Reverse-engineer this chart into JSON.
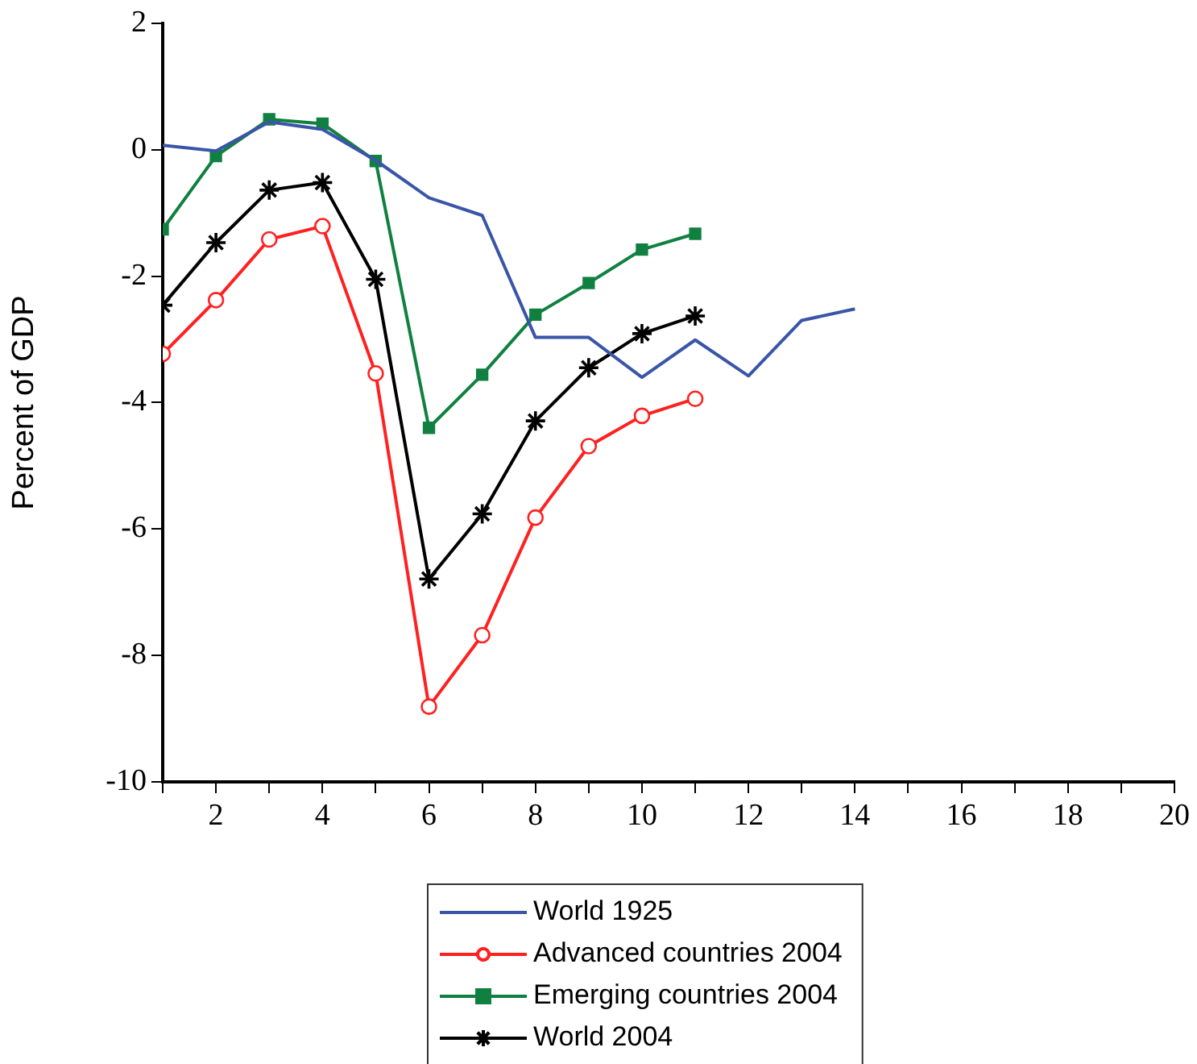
{
  "chart_data": {
    "type": "line",
    "ylabel": "Percent of GDP",
    "x": [
      1,
      2,
      3,
      4,
      5,
      6,
      7,
      8,
      9,
      10,
      11,
      12,
      13,
      14
    ],
    "series": [
      {
        "name": "World 1925",
        "color": "#3a55a8",
        "marker": "none",
        "values": [
          0.07,
          -0.02,
          0.44,
          0.32,
          -0.17,
          -0.76,
          -1.04,
          -2.97,
          -2.97,
          -3.6,
          -3.01,
          -3.58,
          -2.7,
          -2.52
        ]
      },
      {
        "name": "Advanced countries 2004",
        "color": "#ff2020",
        "marker": "circle",
        "values": [
          -3.23,
          -2.38,
          -1.42,
          -1.21,
          -3.54,
          -8.81,
          -7.68,
          -5.82,
          -4.69,
          -4.21,
          -3.94,
          null,
          null,
          null
        ]
      },
      {
        "name": "Emerging countries 2004",
        "color": "#108040",
        "marker": "square",
        "values": [
          -1.26,
          -0.1,
          0.48,
          0.41,
          -0.18,
          -4.4,
          -3.56,
          -2.61,
          -2.11,
          -1.58,
          -1.33,
          null,
          null,
          null
        ]
      },
      {
        "name": "World 2004",
        "color": "#000000",
        "marker": "cross",
        "values": [
          -2.46,
          -1.47,
          -0.64,
          -0.52,
          -2.05,
          -6.79,
          -5.76,
          -4.29,
          -3.45,
          -2.91,
          -2.63,
          null,
          null,
          null
        ]
      }
    ],
    "xlim": [
      1,
      20
    ],
    "xticks": [
      {
        "value": 1,
        "label": null
      },
      2,
      {
        "value": 3,
        "label": null
      },
      4,
      {
        "value": 5,
        "label": null
      },
      6,
      {
        "value": 7,
        "label": null
      },
      8,
      {
        "value": 9,
        "label": null
      },
      10,
      {
        "value": 11,
        "label": null
      },
      12,
      {
        "value": 13,
        "label": null
      },
      14,
      {
        "value": 15,
        "label": null
      },
      16,
      {
        "value": 17,
        "label": null
      },
      18,
      {
        "value": 19,
        "label": null
      },
      20
    ],
    "ylim": [
      -10,
      2
    ],
    "yticks": [
      -10,
      -8,
      -6,
      -4,
      -2,
      0,
      2
    ],
    "grid": false,
    "legend": "bottom",
    "line_style": "solid"
  }
}
